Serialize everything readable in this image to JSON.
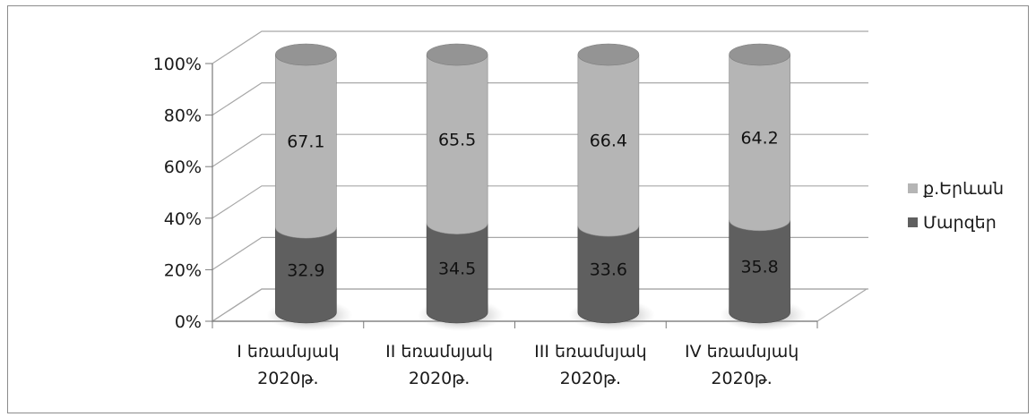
{
  "chart_data": {
    "type": "bar",
    "stacked": true,
    "percent": true,
    "three_d": "cylinder",
    "categories": [
      [
        "I եռամսյակ",
        "2020թ."
      ],
      [
        "II եռամսյակ",
        "2020թ."
      ],
      [
        "III եռամսյակ",
        "2020թ."
      ],
      [
        "IV եռամսյակ",
        "2020թ."
      ]
    ],
    "series": [
      {
        "name": "Մարզեր",
        "values": [
          32.9,
          34.5,
          33.6,
          35.8
        ],
        "color": "#5f5f5f"
      },
      {
        "name": "ք.Երևան",
        "values": [
          67.1,
          65.5,
          66.4,
          64.2
        ],
        "color": "#b5b5b5"
      }
    ],
    "y_ticks": [
      "0%",
      "20%",
      "40%",
      "60%",
      "80%",
      "100%"
    ],
    "ylim": [
      0,
      100
    ],
    "grid": true,
    "legend": "right",
    "data_labels": true
  }
}
